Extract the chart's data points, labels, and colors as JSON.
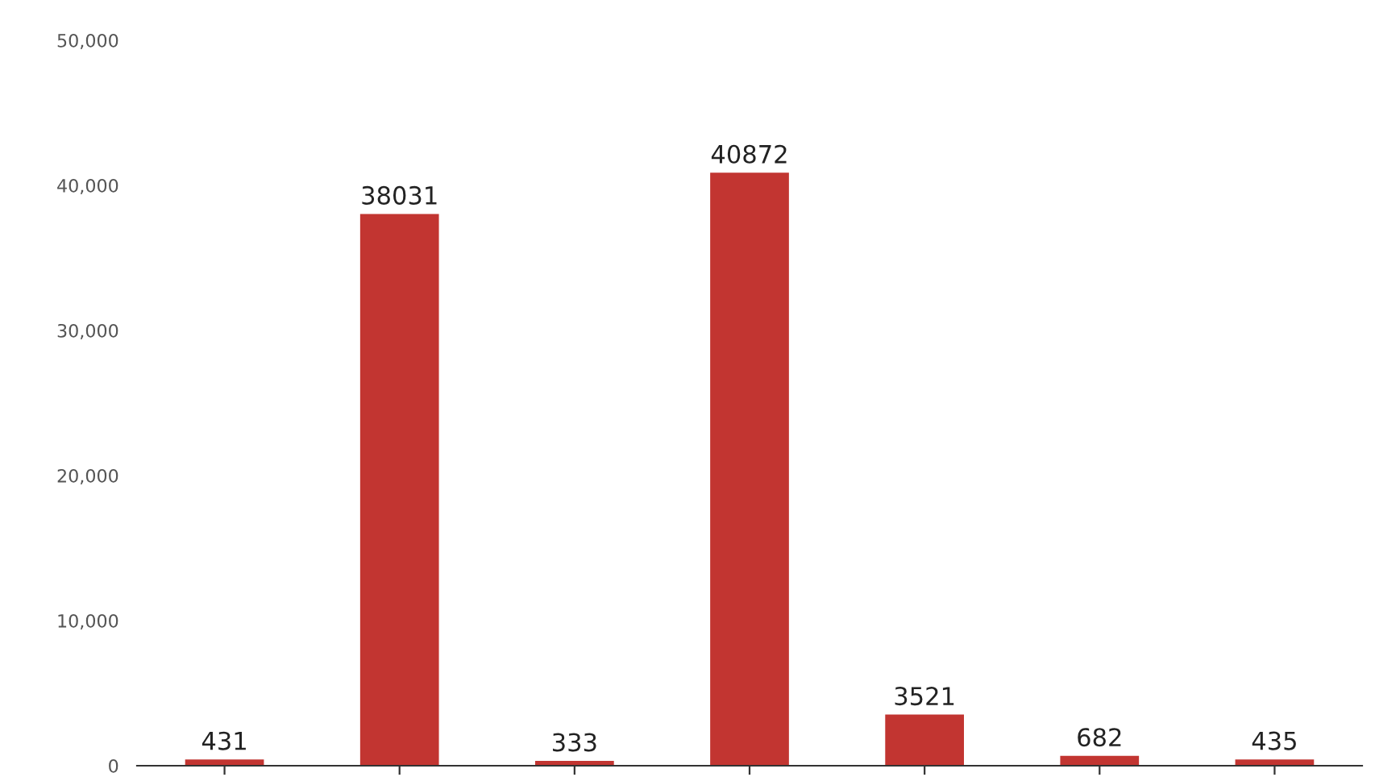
{
  "chart_data": {
    "type": "bar",
    "categories": [
      null,
      null,
      null,
      null,
      null,
      null,
      null
    ],
    "values": [
      431,
      38031,
      333,
      40872,
      3521,
      682,
      435
    ],
    "color": "#c23531",
    "ylim": [
      0,
      50000
    ],
    "yticks": [
      {
        "value": 0,
        "label": "0"
      },
      {
        "value": 10000,
        "label": "10,000"
      },
      {
        "value": 20000,
        "label": "20,000"
      },
      {
        "value": 30000,
        "label": "30,000"
      },
      {
        "value": 40000,
        "label": "40,000"
      },
      {
        "value": 50000,
        "label": "50,000"
      }
    ],
    "grid": false,
    "data_labels": true
  }
}
